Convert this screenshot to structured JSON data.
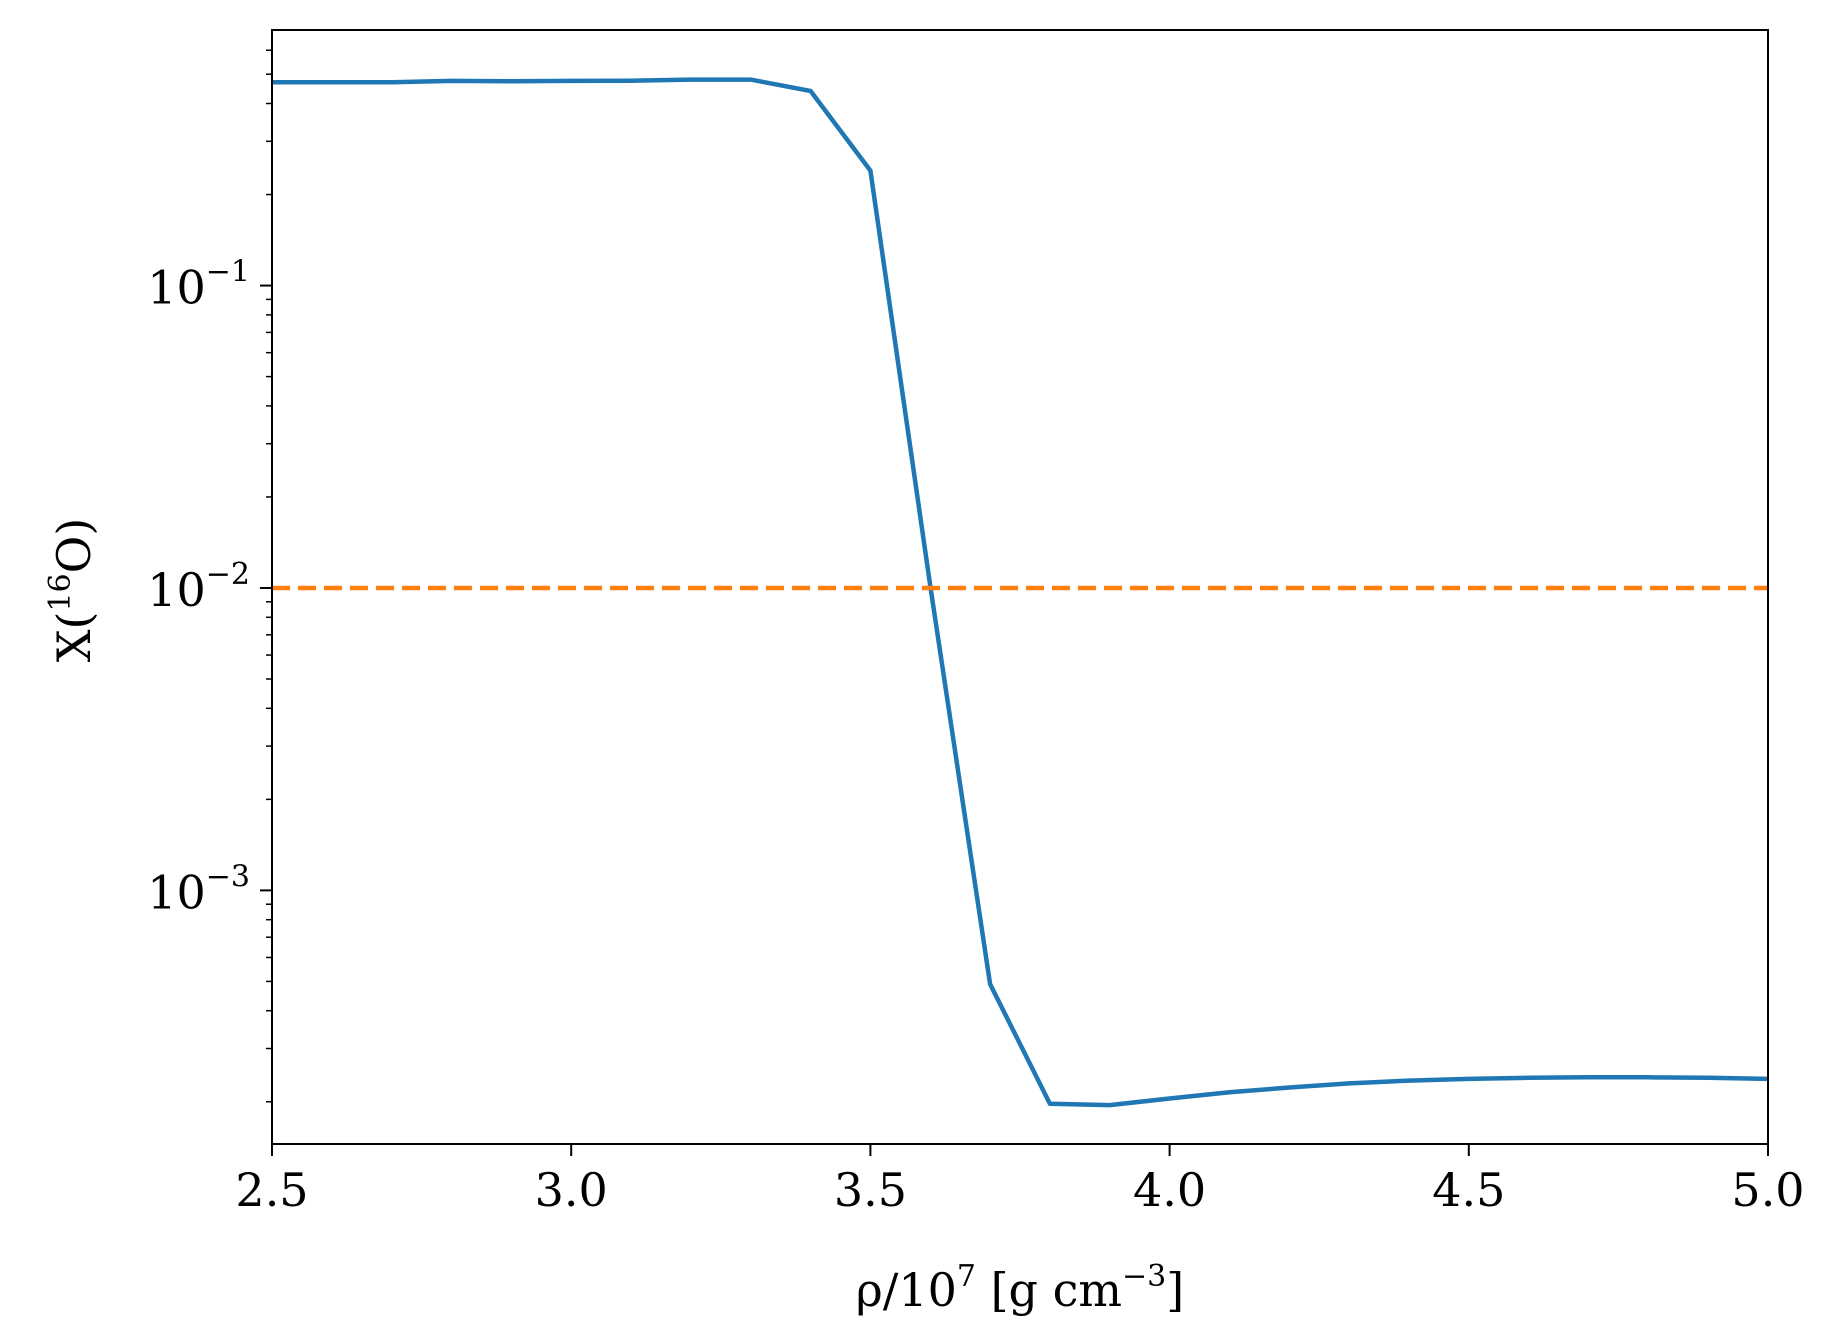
{
  "chart_data": {
    "type": "line",
    "title": "",
    "xlabel": {
      "pre": "ρ/10",
      "sup": "7",
      "mid": " [g cm",
      "sup2": "−3",
      "post": "]"
    },
    "ylabel": {
      "pre": "X(",
      "sup": "16",
      "post": "O)"
    },
    "xlim": [
      2.5,
      5.0
    ],
    "ylim": [
      0.000145,
      0.7
    ],
    "yscale": "log",
    "grid": false,
    "xticks": [
      {
        "value": 2.5,
        "label": "2.5"
      },
      {
        "value": 3.0,
        "label": "3.0"
      },
      {
        "value": 3.5,
        "label": "3.5"
      },
      {
        "value": 4.0,
        "label": "4.0"
      },
      {
        "value": 4.5,
        "label": "4.5"
      },
      {
        "value": 5.0,
        "label": "5.0"
      }
    ],
    "yticks": [
      {
        "value": 0.1,
        "base": "10",
        "exp": "−1"
      },
      {
        "value": 0.01,
        "base": "10",
        "exp": "−2"
      },
      {
        "value": 0.001,
        "base": "10",
        "exp": "−3"
      }
    ],
    "series": [
      {
        "color": "#1f77b4",
        "style": "solid",
        "x": [
          2.5,
          2.6,
          2.7,
          2.8,
          2.9,
          3.0,
          3.1,
          3.2,
          3.3,
          3.4,
          3.5,
          3.6,
          3.7,
          3.8,
          3.9,
          4.0,
          4.1,
          4.2,
          4.3,
          4.4,
          4.5,
          4.6,
          4.7,
          4.8,
          4.9,
          5.0
        ],
        "y": [
          0.47,
          0.47,
          0.47,
          0.475,
          0.474,
          0.475,
          0.476,
          0.48,
          0.48,
          0.44,
          0.24,
          0.0102,
          0.00049,
          0.000197,
          0.000195,
          0.000205,
          0.000215,
          0.000223,
          0.00023,
          0.000235,
          0.000238,
          0.00024,
          0.000241,
          0.000241,
          0.00024,
          0.000238
        ]
      },
      {
        "color": "#ff7f0e",
        "style": "dashed",
        "x": [
          2.5,
          5.0
        ],
        "y": [
          0.01,
          0.01
        ]
      }
    ]
  }
}
